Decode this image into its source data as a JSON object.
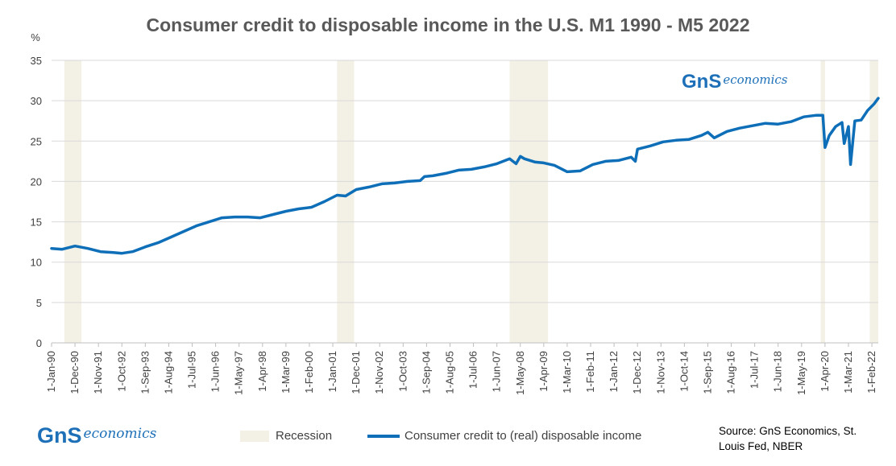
{
  "chart_data": {
    "type": "line",
    "title": "Consumer credit to disposable income in the U.S. M1 1990 - M5 2022",
    "ylabel": "%",
    "ylim": [
      0,
      35
    ],
    "yticks": [
      0,
      5,
      10,
      15,
      20,
      25,
      30,
      35
    ],
    "xlim": [
      "1990-01",
      "2022-05"
    ],
    "xtick_labels": [
      "1-Jan-90",
      "1-Dec-90",
      "1-Nov-91",
      "1-Oct-92",
      "1-Sep-93",
      "1-Aug-94",
      "1-Jul-95",
      "1-Jun-96",
      "1-May-97",
      "1-Apr-98",
      "1-Mar-99",
      "1-Feb-00",
      "1-Jan-01",
      "1-Dec-01",
      "1-Nov-02",
      "1-Oct-03",
      "1-Sep-04",
      "1-Aug-05",
      "1-Jul-06",
      "1-Jun-07",
      "1-May-08",
      "1-Apr-09",
      "1-Mar-10",
      "1-Feb-11",
      "1-Jan-12",
      "1-Dec-12",
      "1-Nov-13",
      "1-Oct-14",
      "1-Sep-15",
      "1-Aug-16",
      "1-Jul-17",
      "1-Jun-18",
      "1-May-19",
      "1-Apr-20",
      "1-Mar-21",
      "1-Feb-22"
    ],
    "grid": true,
    "legend_position": "bottom",
    "recessions": [
      {
        "start": "1990-07",
        "end": "1991-03"
      },
      {
        "start": "2001-03",
        "end": "2001-11"
      },
      {
        "start": "2007-12",
        "end": "2009-06"
      },
      {
        "start": "2020-02",
        "end": "2020-04"
      },
      {
        "start": "2022-01",
        "end": "2022-05"
      }
    ],
    "series": [
      {
        "name": "Consumer credit to (real) disposable income",
        "color": "#0e6fb8",
        "x": [
          "1990-01",
          "1990-06",
          "1990-12",
          "1991-06",
          "1991-12",
          "1992-06",
          "1992-10",
          "1993-03",
          "1993-09",
          "1994-03",
          "1994-09",
          "1995-03",
          "1995-09",
          "1996-03",
          "1996-09",
          "1997-03",
          "1997-09",
          "1998-03",
          "1998-09",
          "1999-03",
          "1999-09",
          "2000-03",
          "2000-09",
          "2001-03",
          "2001-07",
          "2001-12",
          "2002-06",
          "2002-12",
          "2003-06",
          "2003-12",
          "2004-06",
          "2004-08",
          "2004-12",
          "2005-06",
          "2005-12",
          "2006-06",
          "2006-12",
          "2007-06",
          "2007-12",
          "2008-03",
          "2008-05",
          "2008-07",
          "2008-12",
          "2009-04",
          "2009-09",
          "2010-03",
          "2010-09",
          "2011-03",
          "2011-09",
          "2012-03",
          "2012-09",
          "2012-11",
          "2012-12",
          "2013-06",
          "2013-12",
          "2014-06",
          "2014-12",
          "2015-06",
          "2015-09",
          "2015-12",
          "2016-06",
          "2016-12",
          "2017-06",
          "2017-12",
          "2018-06",
          "2018-12",
          "2019-06",
          "2019-12",
          "2020-03",
          "2020-04",
          "2020-06",
          "2020-09",
          "2020-12",
          "2021-01",
          "2021-03",
          "2021-04",
          "2021-06",
          "2021-09",
          "2021-12",
          "2022-03",
          "2022-05"
        ],
        "values": [
          11.7,
          11.6,
          12.0,
          11.7,
          11.3,
          11.2,
          11.1,
          11.3,
          11.9,
          12.4,
          13.1,
          13.8,
          14.5,
          15.0,
          15.5,
          15.6,
          15.6,
          15.5,
          15.9,
          16.3,
          16.6,
          16.8,
          17.5,
          18.3,
          18.2,
          19.0,
          19.3,
          19.7,
          19.8,
          20.0,
          20.1,
          20.6,
          20.7,
          21.0,
          21.4,
          21.5,
          21.8,
          22.2,
          22.8,
          22.2,
          23.1,
          22.8,
          22.4,
          22.3,
          22.0,
          21.2,
          21.3,
          22.1,
          22.5,
          22.6,
          23.0,
          22.5,
          24.0,
          24.4,
          24.9,
          25.1,
          25.2,
          25.7,
          26.1,
          25.4,
          26.2,
          26.6,
          26.9,
          27.2,
          27.1,
          27.4,
          28.0,
          28.2,
          28.2,
          24.2,
          25.7,
          26.8,
          27.3,
          24.7,
          26.8,
          22.1,
          27.5,
          27.6,
          28.8,
          29.6,
          30.3
        ]
      }
    ]
  },
  "legend": {
    "recession_label": "Recession",
    "series_label": "Consumer credit to (real) disposable income"
  },
  "source_text": "Source: GnS Economics, St. Louis Fed, NBER",
  "logo_top": {
    "mark": "GnS",
    "word": "economics"
  },
  "logo_bottom": {
    "mark": "GnS",
    "word": "economics"
  }
}
